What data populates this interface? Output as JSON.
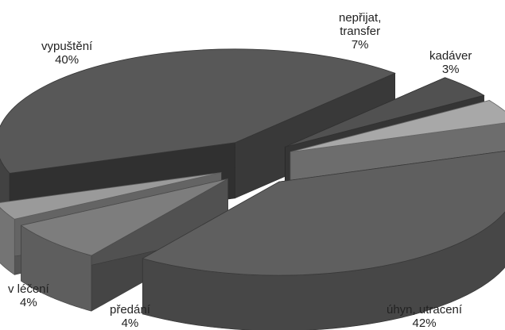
{
  "chart_data": {
    "type": "pie",
    "style": "3d-exploded",
    "slices": [
      {
        "label": "vypuštění",
        "value": 40,
        "value_text": "40%",
        "color": "#5f5f5f"
      },
      {
        "label": "nepřijat, transfer",
        "label_lines": [
          "nepřijat,",
          "transfer"
        ],
        "value": 7,
        "value_text": "7%",
        "color": "#7d7d7d"
      },
      {
        "label": "kadáver",
        "value": 3,
        "value_text": "3%",
        "color": "#9a9a9a"
      },
      {
        "label": "úhyn, utracení",
        "value": 42,
        "value_text": "42%",
        "color": "#585858"
      },
      {
        "label": "předání",
        "value": 4,
        "value_text": "4%",
        "color": "#515151"
      },
      {
        "label": "v léčení",
        "value": 4,
        "value_text": "4%",
        "color": "#a8a8a8"
      }
    ]
  }
}
